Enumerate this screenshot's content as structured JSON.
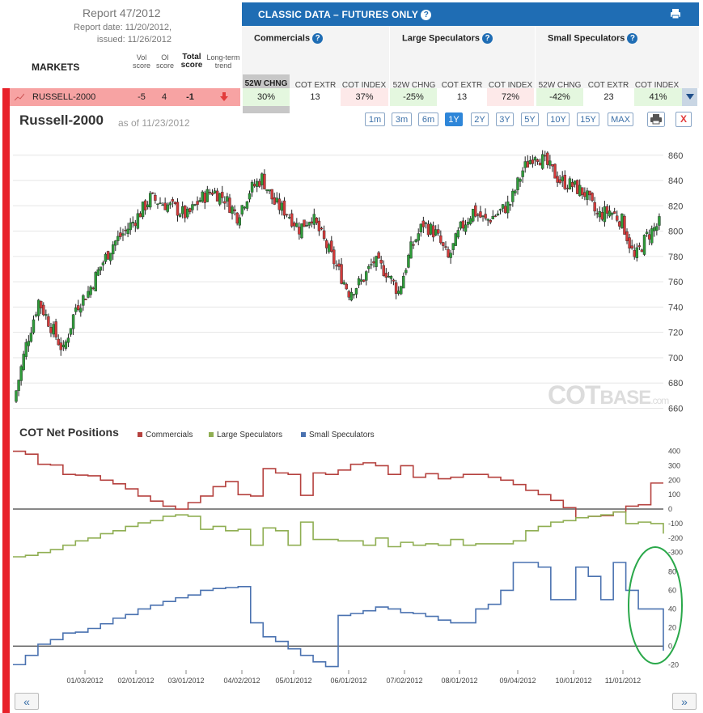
{
  "report": {
    "title": "Report 47/2012",
    "date": "Report date: 11/20/2012,",
    "issued": "issued: 11/26/2012",
    "markets_label": "MARKETS",
    "col_vol": "Vol score",
    "col_oi": "OI score",
    "col_total": "Total score",
    "col_trend": "Long-term trend"
  },
  "banner": {
    "title": "CLASSIC DATA – FUTURES ONLY",
    "help": "?"
  },
  "groups": [
    {
      "name": "Commercials",
      "cols": [
        "52W CHNG",
        "COT EXTR",
        "COT INDEX"
      ]
    },
    {
      "name": "Large Speculators",
      "cols": [
        "52W CHNG",
        "COT EXTR",
        "COT INDEX"
      ]
    },
    {
      "name": "Small Speculators",
      "cols": [
        "52W CHNG",
        "COT EXTR",
        "COT INDEX"
      ]
    }
  ],
  "row": {
    "market": "RUSSELL-2000",
    "vol": "-5",
    "oi": "4",
    "total": "-1",
    "trend": "down",
    "values": [
      "30%",
      "13",
      "37%",
      "-25%",
      "13",
      "72%",
      "-42%",
      "23",
      "41%"
    ]
  },
  "chart_header": {
    "title": "Russell-2000",
    "asof": "as of 11/23/2012",
    "ranges": [
      "1m",
      "3m",
      "6m",
      "1Y",
      "2Y",
      "3Y",
      "5Y",
      "10Y",
      "15Y",
      "MAX"
    ],
    "active_range": "1Y",
    "close_label": "X"
  },
  "watermark": {
    "main": "COT",
    "sub": "BASE",
    "suffix": ".com"
  },
  "cot_panel": {
    "title": "COT Net Positions",
    "legend": [
      {
        "name": "Commercials",
        "color": "#b5413e"
      },
      {
        "name": "Large Speculators",
        "color": "#8fae52"
      },
      {
        "name": "Small Speculators",
        "color": "#4a72b0"
      }
    ]
  },
  "nav": {
    "prev": "«",
    "next": "»"
  },
  "chart_data": [
    {
      "type": "candlestick",
      "title": "Russell-2000",
      "ylim": [
        652,
        872
      ],
      "yticks": [
        660,
        680,
        700,
        720,
        740,
        760,
        780,
        800,
        820,
        840,
        860
      ],
      "x_tick_labels": [
        "01/03/2012",
        "02/01/2012",
        "03/01/2012",
        "04/02/2012",
        "05/01/2012",
        "06/01/2012",
        "07/02/2012",
        "08/01/2012",
        "09/04/2012",
        "10/01/2012",
        "11/01/2012"
      ],
      "up_color": "#2f9c3a",
      "down_color": "#d33b3b",
      "weeks": [
        "11/25/2011",
        "12/02/2011",
        "12/09/2011",
        "12/16/2011",
        "12/23/2011",
        "12/30/2011",
        "01/06/2012",
        "01/13/2012",
        "01/20/2012",
        "01/27/2012",
        "02/03/2012",
        "02/10/2012",
        "02/17/2012",
        "02/24/2012",
        "03/02/2012",
        "03/09/2012",
        "03/16/2012",
        "03/23/2012",
        "03/30/2012",
        "04/05/2012",
        "04/13/2012",
        "04/20/2012",
        "04/27/2012",
        "05/04/2012",
        "05/11/2012",
        "05/18/2012",
        "05/25/2012",
        "06/01/2012",
        "06/08/2012",
        "06/15/2012",
        "06/22/2012",
        "06/29/2012",
        "07/06/2012",
        "07/13/2012",
        "07/20/2012",
        "07/27/2012",
        "08/03/2012",
        "08/10/2012",
        "08/17/2012",
        "08/24/2012",
        "08/31/2012",
        "09/07/2012",
        "09/14/2012",
        "09/21/2012",
        "09/28/2012",
        "10/05/2012",
        "10/12/2012",
        "10/19/2012",
        "10/26/2012",
        "11/02/2012",
        "11/09/2012",
        "11/16/2012",
        "11/23/2012"
      ],
      "weekly_close": [
        665,
        710,
        745,
        725,
        705,
        740,
        752,
        772,
        790,
        800,
        812,
        826,
        822,
        818,
        812,
        825,
        832,
        826,
        812,
        832,
        842,
        822,
        815,
        802,
        812,
        792,
        772,
        752,
        760,
        776,
        768,
        752,
        786,
        806,
        798,
        778,
        802,
        816,
        808,
        814,
        822,
        848,
        862,
        852,
        840,
        836,
        830,
        812,
        816,
        808,
        778,
        796,
        806
      ]
    },
    {
      "type": "line",
      "title": "COT Net Positions",
      "x_tick_labels": [
        "01/03/2012",
        "02/01/2012",
        "03/01/2012",
        "04/02/2012",
        "05/01/2012",
        "06/01/2012",
        "07/02/2012",
        "08/01/2012",
        "09/04/2012",
        "10/01/2012",
        "11/01/2012"
      ],
      "upper_axis": {
        "ylim": [
          -330,
          420
        ],
        "yticks": [
          400,
          300,
          200,
          100,
          0,
          -100,
          -200,
          -300
        ]
      },
      "lower_axis": {
        "ylim": [
          -25,
          90
        ],
        "yticks": [
          80,
          60,
          40,
          20,
          0,
          -20
        ]
      },
      "series": [
        {
          "name": "Commercials",
          "axis": "upper",
          "values": [
            400,
            380,
            310,
            305,
            240,
            235,
            230,
            200,
            175,
            140,
            90,
            55,
            20,
            0,
            45,
            90,
            155,
            190,
            100,
            90,
            280,
            250,
            240,
            95,
            250,
            240,
            270,
            310,
            320,
            300,
            240,
            300,
            220,
            245,
            210,
            220,
            240,
            240,
            220,
            200,
            170,
            130,
            100,
            60,
            10,
            -60,
            -50,
            -45,
            -20,
            20,
            30,
            180,
            180
          ]
        },
        {
          "name": "Large Speculators",
          "axis": "upper",
          "values": [
            -330,
            -320,
            -300,
            -280,
            -250,
            -220,
            -200,
            -170,
            -150,
            -120,
            -95,
            -80,
            -50,
            -40,
            -50,
            -140,
            -120,
            -150,
            -140,
            -250,
            -130,
            -150,
            -250,
            -90,
            -210,
            -210,
            -220,
            -220,
            -250,
            -200,
            -260,
            -230,
            -250,
            -240,
            -250,
            -210,
            -250,
            -240,
            -240,
            -240,
            -220,
            -150,
            -120,
            -90,
            -80,
            -60,
            -50,
            -40,
            -20,
            -100,
            -90,
            -100,
            -170
          ]
        },
        {
          "name": "Small Speculators",
          "axis": "lower",
          "values": [
            -20,
            -10,
            2,
            7,
            14,
            15,
            19,
            24,
            30,
            34,
            40,
            44,
            48,
            52,
            55,
            60,
            62,
            63,
            64,
            25,
            10,
            5,
            -3,
            -10,
            -17,
            -22,
            33,
            35,
            38,
            42,
            40,
            36,
            35,
            32,
            28,
            25,
            25,
            40,
            45,
            60,
            90,
            90,
            85,
            50,
            50,
            85,
            75,
            50,
            90,
            60,
            40,
            40,
            -5
          ]
        }
      ]
    }
  ]
}
